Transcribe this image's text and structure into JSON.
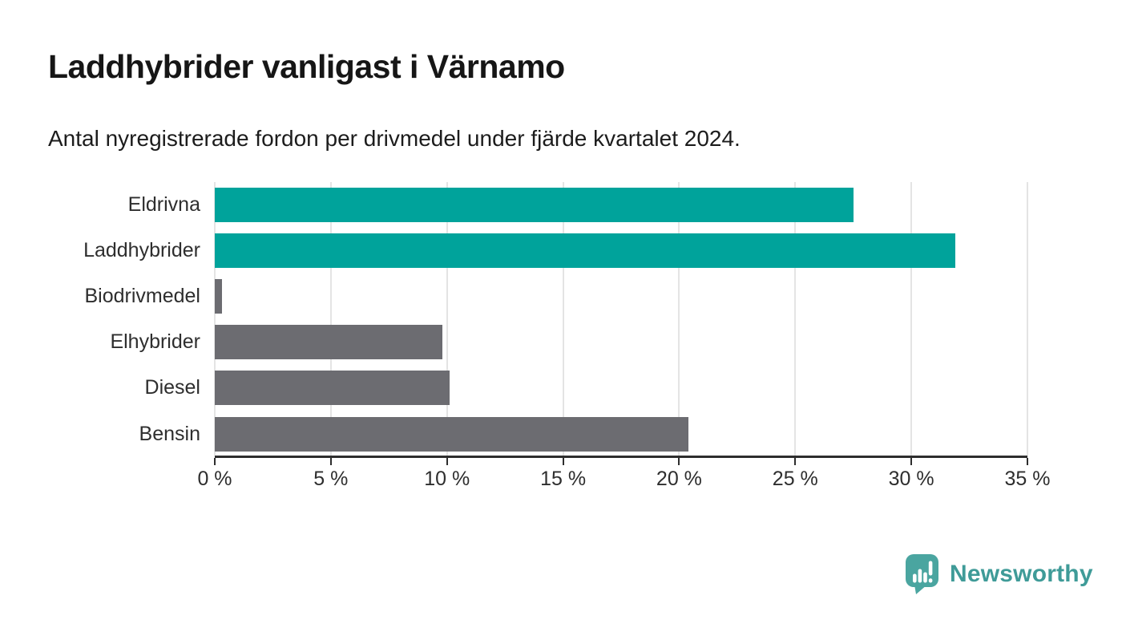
{
  "header": {
    "title": "Laddhybrider vanligast i Värnamo",
    "subtitle": "Antal nyregistrerade fordon per drivmedel under fjärde kvartalet 2024."
  },
  "chart_data": {
    "type": "bar",
    "orientation": "horizontal",
    "title": "Laddhybrider vanligast i Värnamo",
    "subtitle": "Antal nyregistrerade fordon per drivmedel under fjärde kvartalet 2024.",
    "categories": [
      "Eldrivna",
      "Laddhybrider",
      "Biodrivmedel",
      "Elhybrider",
      "Diesel",
      "Bensin"
    ],
    "values": [
      27.5,
      31.9,
      0.3,
      9.8,
      10.1,
      20.4
    ],
    "unit": "%",
    "xlim": [
      0,
      35
    ],
    "x_ticks": [
      0,
      5,
      10,
      15,
      20,
      25,
      30,
      35
    ],
    "x_tick_labels": [
      "0 %",
      "5 %",
      "10 %",
      "15 %",
      "20 %",
      "25 %",
      "30 %",
      "35 %"
    ],
    "grid": "vertical",
    "legend": "none",
    "highlight_indices": [
      0,
      1
    ],
    "colors": {
      "highlight": "#00a39b",
      "default": "#6c6c71",
      "gridline": "#e4e4e4",
      "axis": "#2e2e2e"
    }
  },
  "branding": {
    "logo_text": "Newsworthy",
    "logo_text_color": "#3f9b98",
    "logo_icon": "newsworthy-speech-bubble-chart-icon",
    "logo_icon_color": "#4aa5a0"
  }
}
